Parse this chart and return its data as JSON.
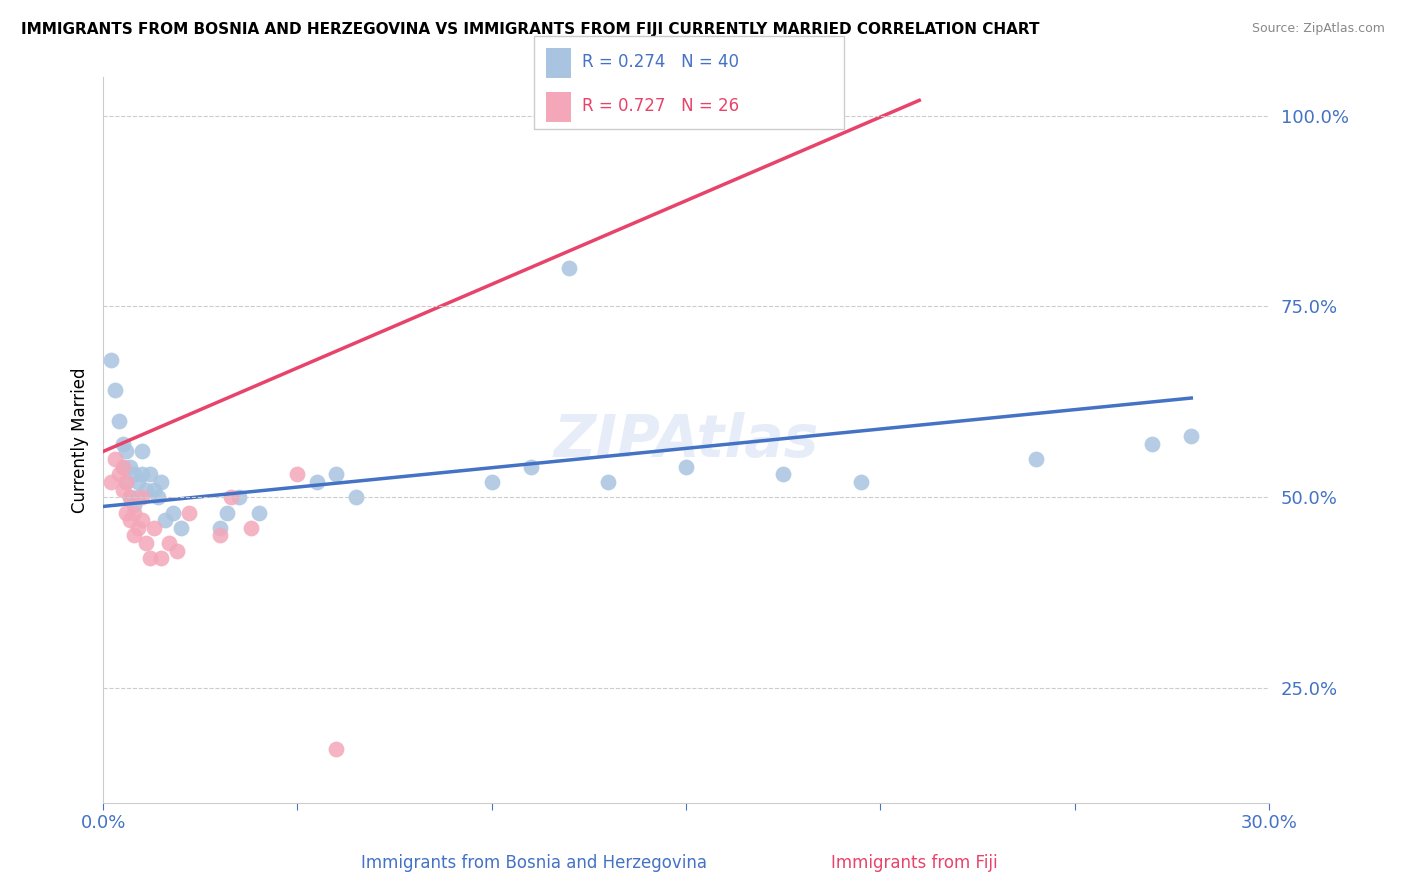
{
  "title": "IMMIGRANTS FROM BOSNIA AND HERZEGOVINA VS IMMIGRANTS FROM FIJI CURRENTLY MARRIED CORRELATION CHART",
  "source": "Source: ZipAtlas.com",
  "ylabel": "Currently Married",
  "label_bosnia": "Immigrants from Bosnia and Herzegovina",
  "label_fiji": "Immigrants from Fiji",
  "xlim": [
    0.0,
    0.3
  ],
  "ylim": [
    0.1,
    1.05
  ],
  "x_ticks": [
    0.0,
    0.05,
    0.1,
    0.15,
    0.2,
    0.25,
    0.3
  ],
  "x_tick_labels": [
    "0.0%",
    "",
    "",
    "",
    "",
    "",
    "30.0%"
  ],
  "y_ticks": [
    0.25,
    0.5,
    0.75,
    1.0
  ],
  "y_tick_labels": [
    "25.0%",
    "50.0%",
    "75.0%",
    "100.0%"
  ],
  "bosnia_color": "#a8c4e0",
  "fiji_color": "#f4a7b9",
  "bosnia_line_color": "#4472c4",
  "fiji_line_color": "#e8436a",
  "R_bosnia": 0.274,
  "N_bosnia": 40,
  "R_fiji": 0.727,
  "N_fiji": 26,
  "watermark": "ZIPAtlas",
  "bosnia_scatter_x": [
    0.002,
    0.003,
    0.004,
    0.005,
    0.005,
    0.006,
    0.006,
    0.007,
    0.007,
    0.008,
    0.008,
    0.009,
    0.009,
    0.01,
    0.01,
    0.011,
    0.012,
    0.013,
    0.014,
    0.015,
    0.016,
    0.018,
    0.02,
    0.03,
    0.032,
    0.035,
    0.04,
    0.055,
    0.06,
    0.065,
    0.1,
    0.11,
    0.12,
    0.13,
    0.15,
    0.175,
    0.195,
    0.24,
    0.27,
    0.28
  ],
  "bosnia_scatter_y": [
    0.68,
    0.64,
    0.6,
    0.57,
    0.54,
    0.56,
    0.52,
    0.54,
    0.5,
    0.53,
    0.49,
    0.52,
    0.5,
    0.56,
    0.53,
    0.51,
    0.53,
    0.51,
    0.5,
    0.52,
    0.47,
    0.48,
    0.46,
    0.46,
    0.48,
    0.5,
    0.48,
    0.52,
    0.53,
    0.5,
    0.52,
    0.54,
    0.8,
    0.52,
    0.54,
    0.53,
    0.52,
    0.55,
    0.57,
    0.58
  ],
  "fiji_scatter_x": [
    0.002,
    0.003,
    0.004,
    0.005,
    0.005,
    0.006,
    0.006,
    0.007,
    0.007,
    0.008,
    0.008,
    0.009,
    0.01,
    0.01,
    0.011,
    0.012,
    0.013,
    0.015,
    0.017,
    0.019,
    0.022,
    0.03,
    0.033,
    0.038,
    0.05,
    0.06
  ],
  "fiji_scatter_y": [
    0.52,
    0.55,
    0.53,
    0.54,
    0.51,
    0.52,
    0.48,
    0.5,
    0.47,
    0.48,
    0.45,
    0.46,
    0.5,
    0.47,
    0.44,
    0.42,
    0.46,
    0.42,
    0.44,
    0.43,
    0.48,
    0.45,
    0.5,
    0.46,
    0.53,
    0.17
  ],
  "bos_line_x": [
    0.0,
    0.28
  ],
  "bos_line_y": [
    0.488,
    0.63
  ],
  "fij_line_x": [
    0.0,
    0.21
  ],
  "fij_line_y": [
    0.56,
    1.02
  ]
}
